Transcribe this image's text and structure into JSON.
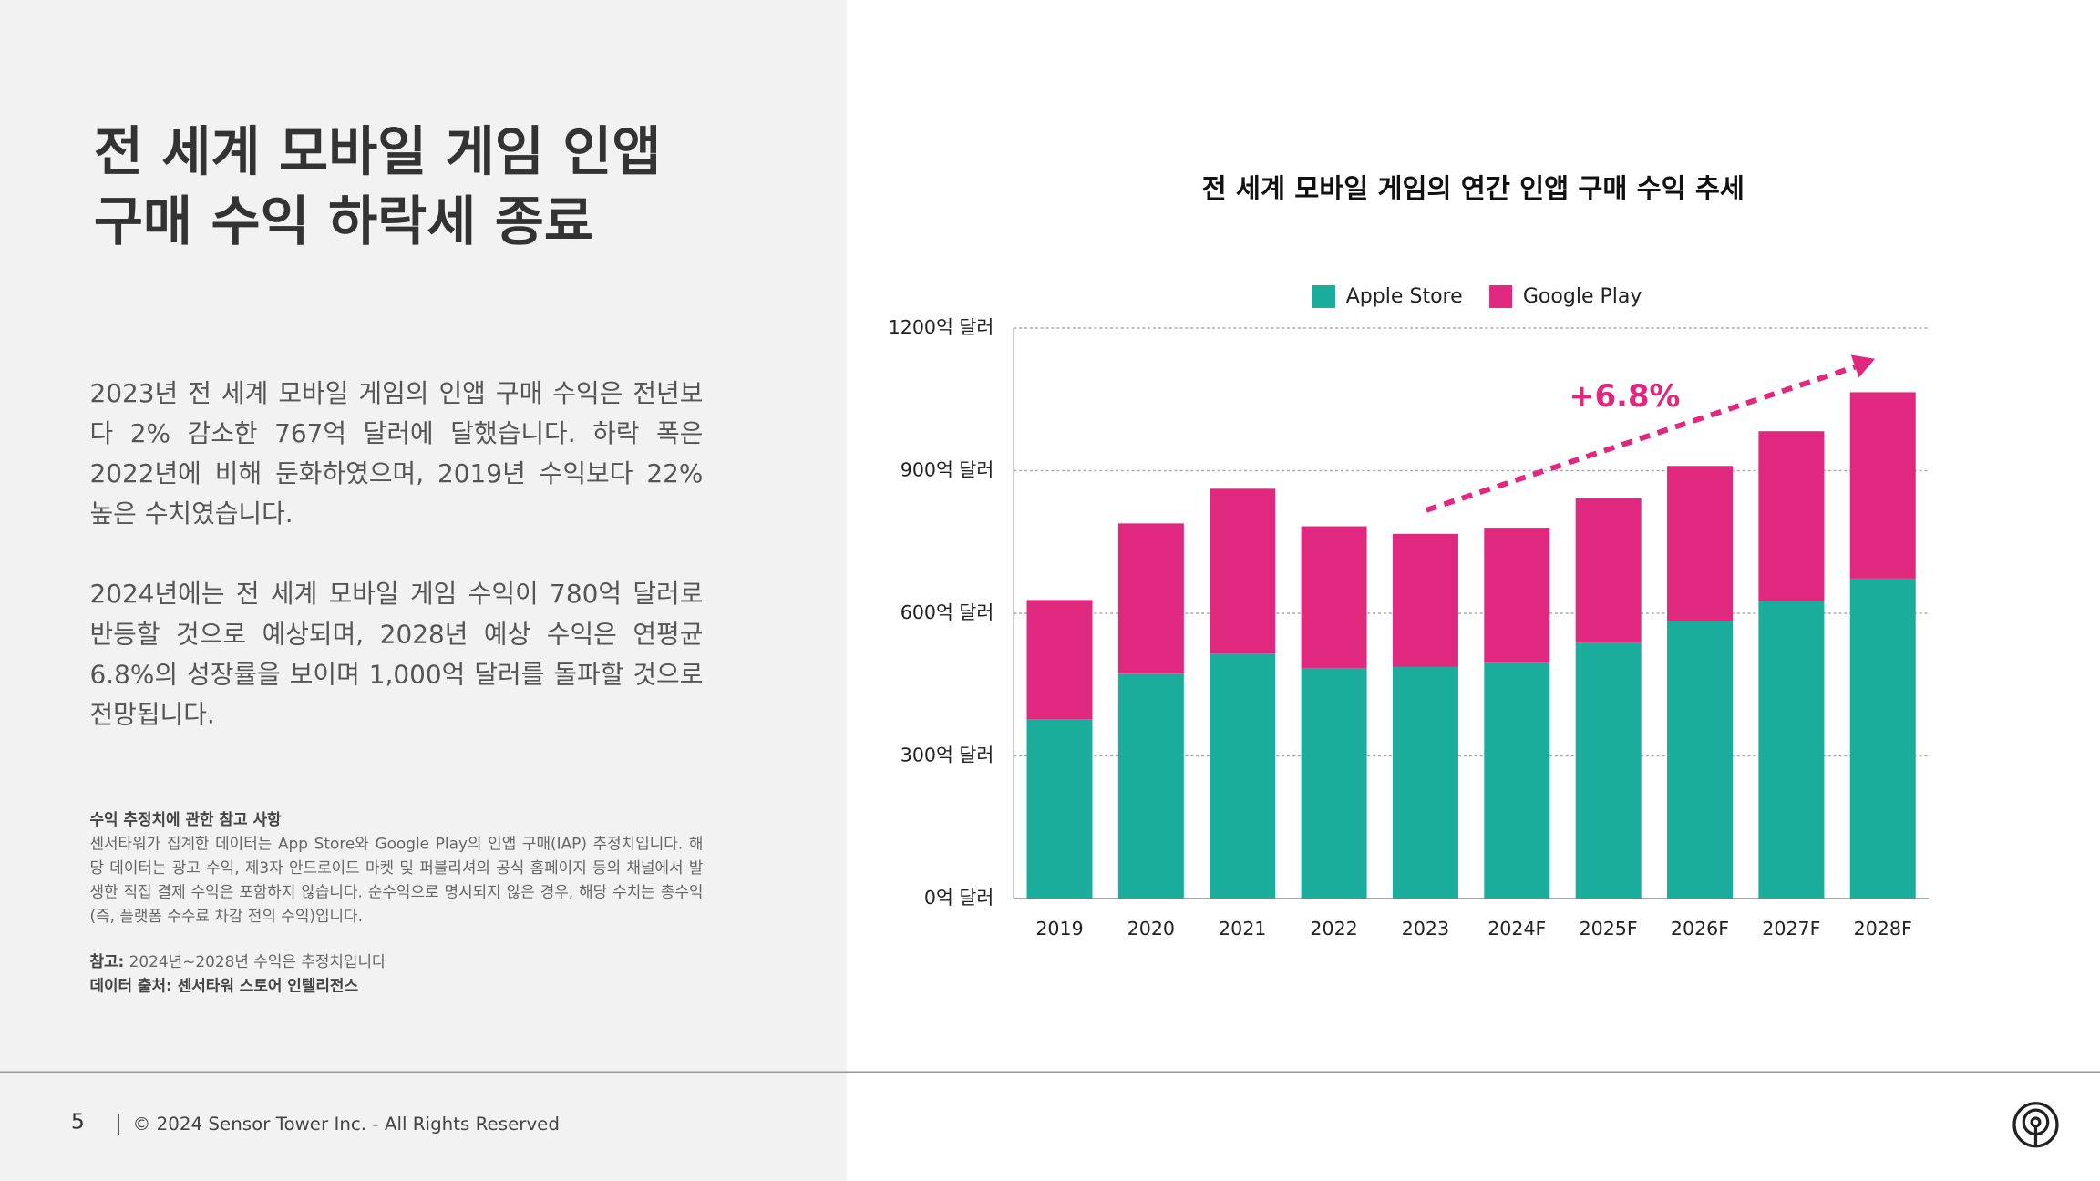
{
  "header": {
    "title_lines": [
      "전 세계 모바일 게임 인앱",
      "구매 수익 하락세 종료"
    ]
  },
  "body": {
    "paragraphs": [
      "2023년 전 세계 모바일 게임의 인앱 구매 수익은 전년보다 2% 감소한 767억 달러에 달했습니다. 하락 폭은 2022년에 비해 둔화하였으며, 2019년 수익보다 22% 높은 수치였습니다.",
      "2024년에는 전 세계 모바일 게임 수익이 780억 달러로 반등할 것으로 예상되며, 2028년 예상 수익은 연평균 6.8%의 성장률을 보이며 1,000억 달러를 돌파할 것으로 전망됩니다."
    ]
  },
  "note": {
    "heading": "수익 추정치에 관한 참고 사항",
    "text": "센서타워가 집계한 데이터는 App Store와 Google Play의 인앱 구매(IAP) 추정치입니다. 해당 데이터는 광고 수익, 제3자 안드로이드 마켓 및 퍼블리셔의 공식 홈페이지 등의 채널에서 발생한 직접 결제 수익은 포함하지 않습니다. 순수익으로 명시되지 않은 경우, 해당 수치는 총수익(즉, 플랫폼 수수료 차감 전의 수익)입니다.",
    "ref_label": "참고:",
    "ref_text": "2024년~2028년 수익은 추정치입니다",
    "source": "데이터 출처: 센서타워 스토어 인텔리전스"
  },
  "footer": {
    "page": "5",
    "copyright": "© 2024 Sensor Tower Inc. - All Rights Reserved"
  },
  "chart_data": {
    "type": "stacked_bar",
    "title": "전 세계 모바일 게임의 연간 인앱 구매 수익 추세",
    "categories": [
      "2019",
      "2020",
      "2021",
      "2022",
      "2023",
      "2024F",
      "2025F",
      "2026F",
      "2027F",
      "2028F"
    ],
    "series": [
      {
        "name": "Apple Store",
        "color": "#1aad9c",
        "values": [
          377,
          473,
          515,
          485,
          487,
          496,
          538,
          583,
          625,
          673
        ]
      },
      {
        "name": "Google Play",
        "color": "#e0287e",
        "values": [
          251,
          316,
          347,
          298,
          280,
          284,
          304,
          327,
          358,
          392
        ]
      }
    ],
    "ylim": [
      0,
      1200
    ],
    "yticks": [
      {
        "value": 0,
        "label": "0억 달러"
      },
      {
        "value": 300,
        "label": "300억 달러"
      },
      {
        "value": 600,
        "label": "600억 달러"
      },
      {
        "value": 900,
        "label": "900억 달러"
      },
      {
        "value": 1200,
        "label": "1200억 달러"
      }
    ],
    "grid": true,
    "legend": "top",
    "annotations": [
      {
        "text": "+6.8%",
        "color": "#e0287e"
      }
    ]
  }
}
